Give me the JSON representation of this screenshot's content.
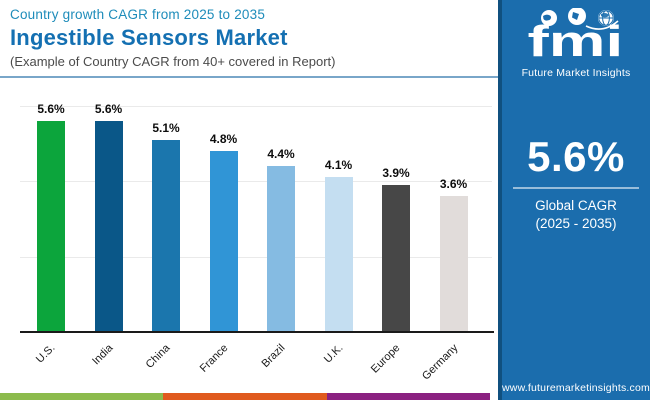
{
  "header": {
    "kicker": "Country growth CAGR from 2025 to 2035",
    "title": "Ingestible Sensors Market",
    "subtitle": "(Example of Country CAGR from 40+ covered in Report)"
  },
  "chart_data": {
    "type": "bar",
    "title": "Ingestible Sensors Market — Country growth CAGR from 2025 to 2035",
    "categories": [
      "U.S.",
      "India",
      "China",
      "France",
      "Brazil",
      "U.K.",
      "Europe",
      "Germany"
    ],
    "values": [
      5.6,
      5.6,
      5.1,
      4.8,
      4.4,
      4.1,
      3.9,
      3.6
    ],
    "value_labels": [
      "5.6%",
      "5.6%",
      "5.1%",
      "4.8%",
      "4.4%",
      "4.1%",
      "3.9%",
      "3.6%"
    ],
    "bar_colors": [
      "#0ca53c",
      "#0a5788",
      "#1b76ad",
      "#3095d6",
      "#85bbe2",
      "#c4def1",
      "#474747",
      "#e1dcda"
    ],
    "xlabel": "",
    "ylabel": "",
    "ylim": [
      0,
      6
    ],
    "gridline_step": 2,
    "grid": true,
    "legend": false
  },
  "sidebar": {
    "logo_text": "fmi",
    "logo_subtext": "Future Market Insights",
    "stat_value": "5.6%",
    "stat_label_line1": "Global CAGR",
    "stat_label_line2": "(2025 - 2035)",
    "website": "www.futuremarketinsights.com",
    "colors": {
      "background": "#1b6dad",
      "edge": "#10507f"
    }
  },
  "brand": {
    "stripe_colors": [
      "#8cbb4d",
      "#e05a1e",
      "#8b2181"
    ],
    "accent_blue": "#1470b2",
    "accent_teal": "#1e8cba"
  }
}
